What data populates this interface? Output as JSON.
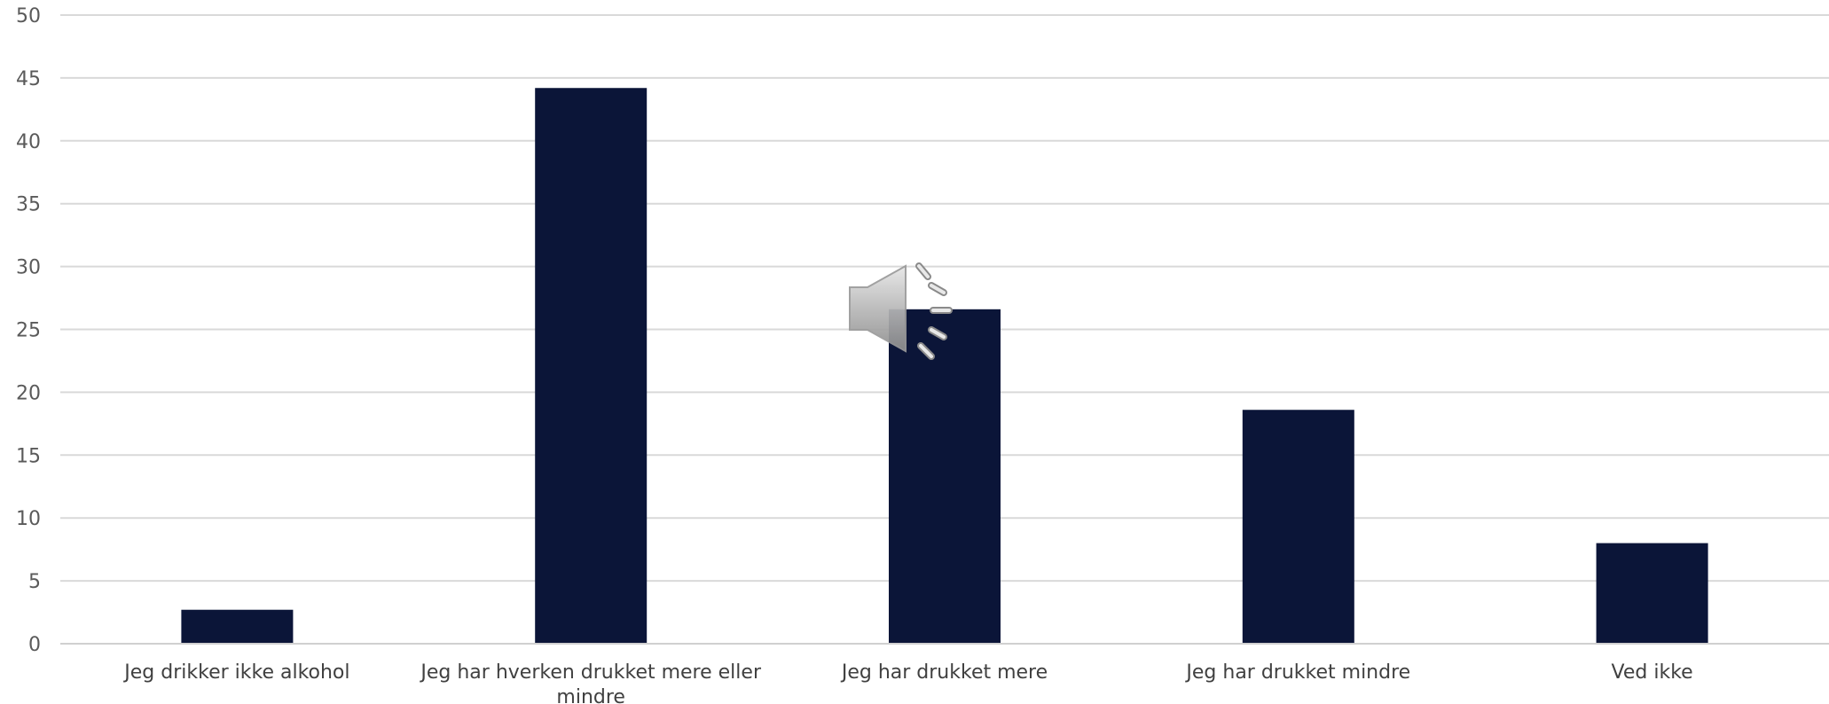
{
  "chart_data": {
    "type": "bar",
    "categories": [
      "Jeg drikker ikke alkohol",
      "Jeg har hverken drukket mere eller mindre",
      "Jeg har drukket mere",
      "Jeg har drukket mindre",
      "Ved ikke"
    ],
    "category_lines": [
      [
        "Jeg drikker ikke alkohol"
      ],
      [
        "Jeg har hverken drukket mere eller",
        "mindre"
      ],
      [
        "Jeg har drukket mere"
      ],
      [
        "Jeg har drukket mindre"
      ],
      [
        "Ved ikke"
      ]
    ],
    "values": [
      2.7,
      44.2,
      26.6,
      18.6,
      8.0
    ],
    "title": "",
    "xlabel": "",
    "ylabel": "",
    "ylim": [
      0,
      50
    ],
    "yticks": [
      0,
      5,
      10,
      15,
      20,
      25,
      30,
      35,
      40,
      45,
      50
    ],
    "grid": true,
    "legend": "none",
    "bar_color": "#0b1538"
  },
  "overlay": {
    "icon": "speaker-icon"
  }
}
